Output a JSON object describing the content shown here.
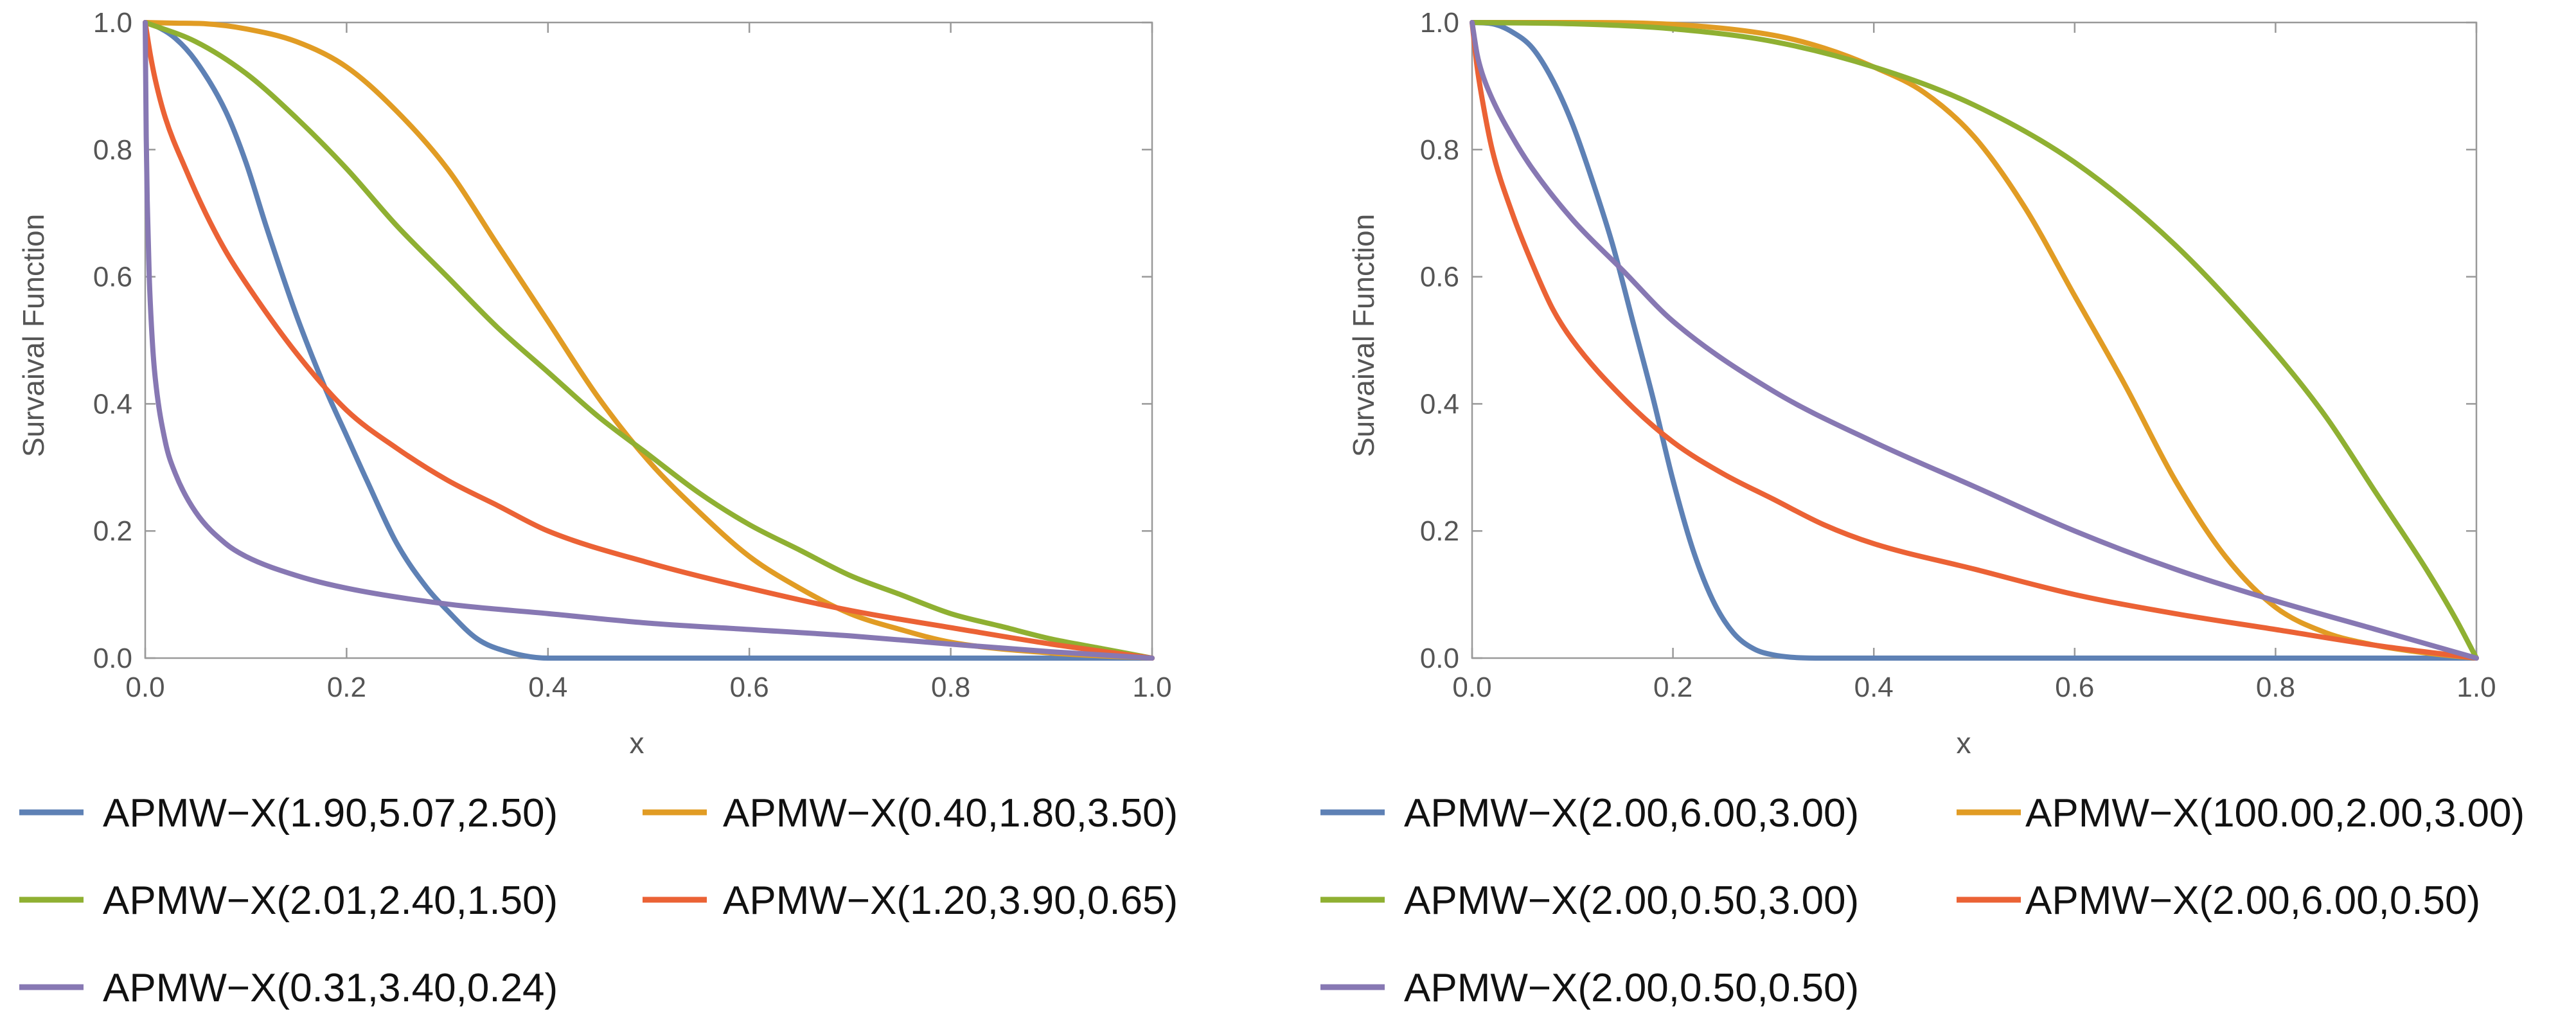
{
  "chart_data": [
    {
      "type": "line",
      "title": "",
      "xlabel": "x",
      "ylabel": "Survaival Function",
      "xlim": [
        0,
        1
      ],
      "ylim": [
        0,
        1
      ],
      "xticks": [
        "0.0",
        "0.2",
        "0.4",
        "0.6",
        "0.8",
        "1.0"
      ],
      "yticks": [
        "0.0",
        "0.2",
        "0.4",
        "0.6",
        "0.8",
        "1.0"
      ],
      "legend_position": "bottom",
      "series": [
        {
          "name": "APMW−X(1.90,5.07,2.50)",
          "color": "#5e81b5",
          "x": [
            0,
            0.01,
            0.03,
            0.05,
            0.08,
            0.1,
            0.12,
            0.15,
            0.18,
            0.2,
            0.22,
            0.25,
            0.28,
            0.3,
            0.33,
            0.36,
            0.4,
            0.5,
            0.7,
            1.0
          ],
          "y": [
            1.0,
            0.995,
            0.975,
            0.94,
            0.86,
            0.78,
            0.68,
            0.54,
            0.42,
            0.35,
            0.28,
            0.18,
            0.11,
            0.075,
            0.03,
            0.01,
            0.0,
            0.0,
            0.0,
            0.0
          ]
        },
        {
          "name": "APMW−X(0.40,1.80,3.50)",
          "color": "#e19c24",
          "x": [
            0,
            0.03,
            0.06,
            0.1,
            0.15,
            0.2,
            0.25,
            0.3,
            0.35,
            0.4,
            0.45,
            0.5,
            0.55,
            0.6,
            0.65,
            0.7,
            0.75,
            0.8,
            0.9,
            1.0
          ],
          "y": [
            1.0,
            0.999,
            0.998,
            0.99,
            0.97,
            0.93,
            0.86,
            0.77,
            0.65,
            0.53,
            0.41,
            0.31,
            0.23,
            0.16,
            0.11,
            0.07,
            0.045,
            0.025,
            0.008,
            0.0
          ]
        },
        {
          "name": "APMW−X(2.01,2.40,1.50)",
          "color": "#8fb032",
          "x": [
            0,
            0.05,
            0.1,
            0.15,
            0.2,
            0.25,
            0.3,
            0.35,
            0.4,
            0.45,
            0.5,
            0.55,
            0.6,
            0.65,
            0.7,
            0.75,
            0.8,
            0.85,
            0.9,
            0.95,
            1.0
          ],
          "y": [
            1.0,
            0.97,
            0.92,
            0.85,
            0.77,
            0.68,
            0.6,
            0.52,
            0.45,
            0.38,
            0.32,
            0.26,
            0.21,
            0.17,
            0.13,
            0.1,
            0.07,
            0.05,
            0.03,
            0.015,
            0.0
          ]
        },
        {
          "name": "APMW−X(1.20,3.90,0.65)",
          "color": "#eb6235",
          "x": [
            0,
            0.005,
            0.01,
            0.02,
            0.04,
            0.06,
            0.08,
            0.1,
            0.15,
            0.2,
            0.25,
            0.3,
            0.35,
            0.4,
            0.5,
            0.6,
            0.7,
            0.8,
            0.9,
            1.0
          ],
          "y": [
            1.0,
            0.95,
            0.91,
            0.85,
            0.77,
            0.7,
            0.64,
            0.59,
            0.48,
            0.39,
            0.33,
            0.28,
            0.24,
            0.2,
            0.15,
            0.11,
            0.075,
            0.048,
            0.022,
            0.0
          ]
        },
        {
          "name": "APMW−X(0.31,3.40,0.24)",
          "color": "#8778b3",
          "x": [
            0,
            0.001,
            0.002,
            0.004,
            0.007,
            0.01,
            0.02,
            0.03,
            0.05,
            0.08,
            0.1,
            0.15,
            0.2,
            0.3,
            0.4,
            0.5,
            0.6,
            0.7,
            0.8,
            0.9,
            1.0
          ],
          "y": [
            1.0,
            0.82,
            0.72,
            0.6,
            0.5,
            0.44,
            0.34,
            0.29,
            0.23,
            0.18,
            0.16,
            0.13,
            0.11,
            0.085,
            0.07,
            0.055,
            0.045,
            0.035,
            0.022,
            0.01,
            0.0
          ]
        }
      ]
    },
    {
      "type": "line",
      "title": "",
      "xlabel": "x",
      "ylabel": "Survaival Function",
      "xlim": [
        0,
        1
      ],
      "ylim": [
        0,
        1
      ],
      "xticks": [
        "0.0",
        "0.2",
        "0.4",
        "0.6",
        "0.8",
        "1.0"
      ],
      "yticks": [
        "0.0",
        "0.2",
        "0.4",
        "0.6",
        "0.8",
        "1.0"
      ],
      "legend_position": "bottom",
      "series": [
        {
          "name": "APMW−X(2.00,6.00,3.00)",
          "color": "#5e81b5",
          "x": [
            0,
            0.02,
            0.04,
            0.06,
            0.08,
            0.1,
            0.12,
            0.14,
            0.16,
            0.18,
            0.2,
            0.22,
            0.24,
            0.26,
            0.28,
            0.3,
            0.35,
            0.5,
            1.0
          ],
          "y": [
            1.0,
            0.998,
            0.985,
            0.96,
            0.91,
            0.84,
            0.75,
            0.65,
            0.53,
            0.41,
            0.28,
            0.17,
            0.09,
            0.04,
            0.015,
            0.005,
            0.0,
            0.0,
            0.0
          ]
        },
        {
          "name": "APMW−X(100.00,2.00,3.00)",
          "color": "#e19c24",
          "x": [
            0,
            0.1,
            0.2,
            0.3,
            0.35,
            0.4,
            0.45,
            0.5,
            0.55,
            0.6,
            0.65,
            0.7,
            0.75,
            0.8,
            0.85,
            0.9,
            0.95,
            1.0
          ],
          "y": [
            1.0,
            1.0,
            0.997,
            0.98,
            0.96,
            0.93,
            0.89,
            0.82,
            0.71,
            0.57,
            0.43,
            0.28,
            0.16,
            0.08,
            0.04,
            0.02,
            0.008,
            0.0
          ]
        },
        {
          "name": "APMW−X(2.00,0.50,3.00)",
          "color": "#8fb032",
          "x": [
            0,
            0.1,
            0.2,
            0.3,
            0.4,
            0.5,
            0.6,
            0.7,
            0.8,
            0.85,
            0.9,
            0.95,
            0.98,
            1.0
          ],
          "y": [
            1.0,
            0.998,
            0.99,
            0.97,
            0.93,
            0.87,
            0.78,
            0.65,
            0.48,
            0.38,
            0.26,
            0.14,
            0.06,
            0.0
          ]
        },
        {
          "name": "APMW−X(2.00,6.00,0.50)",
          "color": "#eb6235",
          "x": [
            0,
            0.005,
            0.01,
            0.02,
            0.04,
            0.06,
            0.08,
            0.1,
            0.15,
            0.2,
            0.25,
            0.3,
            0.35,
            0.4,
            0.5,
            0.6,
            0.7,
            0.8,
            0.9,
            1.0
          ],
          "y": [
            1.0,
            0.93,
            0.88,
            0.8,
            0.7,
            0.62,
            0.55,
            0.5,
            0.41,
            0.34,
            0.29,
            0.25,
            0.21,
            0.18,
            0.14,
            0.1,
            0.07,
            0.045,
            0.02,
            0.0
          ]
        },
        {
          "name": "APMW−X(2.00,0.50,0.50)",
          "color": "#8778b3",
          "x": [
            0,
            0.005,
            0.01,
            0.02,
            0.04,
            0.06,
            0.1,
            0.15,
            0.2,
            0.3,
            0.4,
            0.5,
            0.6,
            0.7,
            0.8,
            0.9,
            1.0
          ],
          "y": [
            1.0,
            0.95,
            0.92,
            0.88,
            0.82,
            0.77,
            0.69,
            0.61,
            0.53,
            0.42,
            0.34,
            0.27,
            0.2,
            0.14,
            0.09,
            0.045,
            0.0
          ]
        }
      ]
    }
  ]
}
